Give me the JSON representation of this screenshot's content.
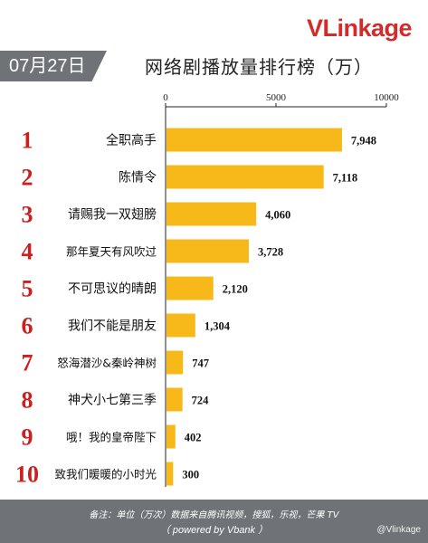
{
  "brand": {
    "logo_v": "V",
    "logo_rest": "Linkage"
  },
  "header": {
    "date": "07月27日",
    "title": "网络剧播放量排行榜（万）"
  },
  "footer": {
    "note": "备注：单位（万次）数据来自腾讯视频，搜狐，乐视，芒果 TV",
    "powered": "（ powered by Vbank ）",
    "weibo": "@Vlinkage"
  },
  "colors": {
    "bar": "#f7b81a",
    "rank": "#cc1f1f",
    "axis": "#222222",
    "banner": "#6f7377",
    "logo": "#d42a2a"
  },
  "chart_data": {
    "type": "bar",
    "orientation": "horizontal",
    "xlim": [
      0,
      10000
    ],
    "x_ticks": [
      0,
      5000,
      10000
    ],
    "grid": false,
    "categories": [
      "全职高手",
      "陈情令",
      "请赐我一双翅膀",
      "那年夏天有风吹过",
      "不可思议的晴朗",
      "我们不能是朋友",
      "怒海潜沙&秦岭神树",
      "神犬小七第三季",
      "哦！我的皇帝陛下",
      "致我们暖暖的小时光"
    ],
    "ranks": [
      "1",
      "2",
      "3",
      "4",
      "5",
      "6",
      "7",
      "8",
      "9",
      "10"
    ],
    "values": [
      7948,
      7118,
      4060,
      3728,
      2120,
      1304,
      747,
      724,
      402,
      300
    ],
    "value_labels": [
      "7,948",
      "7,118",
      "4,060",
      "3,728",
      "2,120",
      "1,304",
      "747",
      "724",
      "402",
      "300"
    ]
  }
}
